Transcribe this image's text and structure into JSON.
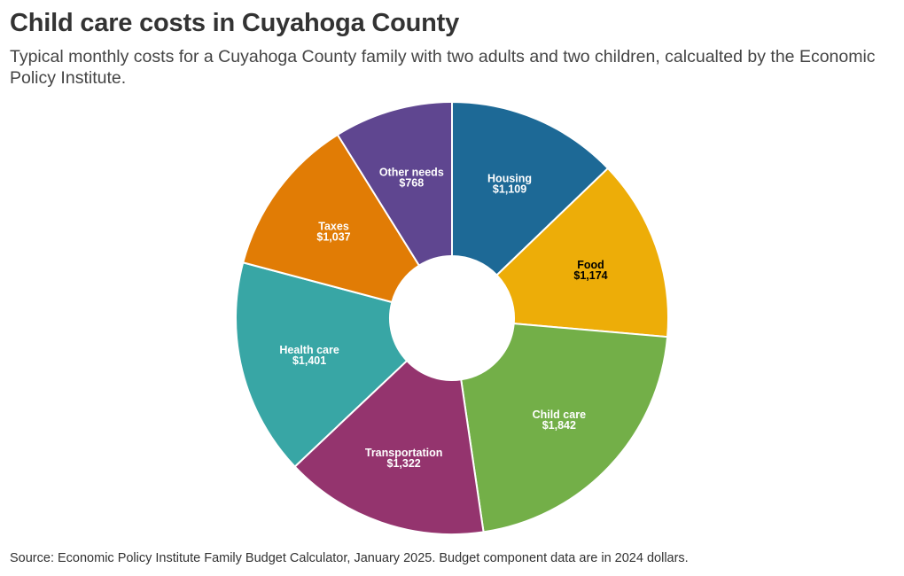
{
  "chart_data": {
    "type": "pie",
    "title": "Child care costs in Cuyahoga County",
    "subtitle": "Typical monthly costs for a Cuyahoga County family with two adults and two children, calcualted by the Economic Policy Institute.",
    "source": "Source: Economic Policy Institute Family Budget Calculator, January 2025. Budget component data are in 2024 dollars.",
    "donut": true,
    "slices": [
      {
        "name": "Housing",
        "value": 1109,
        "value_label": "$1,109",
        "color": "#1d6996",
        "text_color": "#ffffff"
      },
      {
        "name": "Food",
        "value": 1174,
        "value_label": "$1,174",
        "color": "#edad08",
        "text_color": "#000000"
      },
      {
        "name": "Child care",
        "value": 1842,
        "value_label": "$1,842",
        "color": "#73af48",
        "text_color": "#ffffff"
      },
      {
        "name": "Transportation",
        "value": 1322,
        "value_label": "$1,322",
        "color": "#94346e",
        "text_color": "#ffffff"
      },
      {
        "name": "Health care",
        "value": 1401,
        "value_label": "$1,401",
        "color": "#38a6a5",
        "text_color": "#ffffff"
      },
      {
        "name": "Taxes",
        "value": 1037,
        "value_label": "$1,037",
        "color": "#e17c05",
        "text_color": "#ffffff"
      },
      {
        "name": "Other needs",
        "value": 768,
        "value_label": "$768",
        "color": "#5f4690",
        "text_color": "#ffffff"
      }
    ]
  }
}
